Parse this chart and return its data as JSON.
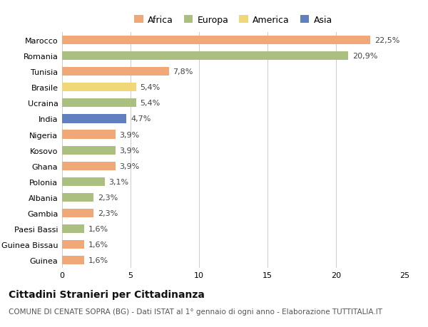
{
  "categories": [
    "Marocco",
    "Romania",
    "Tunisia",
    "Brasile",
    "Ucraina",
    "India",
    "Nigeria",
    "Kosovo",
    "Ghana",
    "Polonia",
    "Albania",
    "Gambia",
    "Paesi Bassi",
    "Guinea Bissau",
    "Guinea"
  ],
  "values": [
    22.5,
    20.9,
    7.8,
    5.4,
    5.4,
    4.7,
    3.9,
    3.9,
    3.9,
    3.1,
    2.3,
    2.3,
    1.6,
    1.6,
    1.6
  ],
  "labels": [
    "22,5%",
    "20,9%",
    "7,8%",
    "5,4%",
    "5,4%",
    "4,7%",
    "3,9%",
    "3,9%",
    "3,9%",
    "3,1%",
    "2,3%",
    "2,3%",
    "1,6%",
    "1,6%",
    "1,6%"
  ],
  "continents": [
    "Africa",
    "Europa",
    "Africa",
    "America",
    "Europa",
    "Asia",
    "Africa",
    "Europa",
    "Africa",
    "Europa",
    "Europa",
    "Africa",
    "Europa",
    "Africa",
    "Africa"
  ],
  "continent_colors": {
    "Africa": "#F0A878",
    "Europa": "#AABF80",
    "America": "#F0D878",
    "Asia": "#6080C0"
  },
  "legend_order": [
    "Africa",
    "Europa",
    "America",
    "Asia"
  ],
  "title": "Cittadini Stranieri per Cittadinanza",
  "subtitle": "COMUNE DI CENATE SOPRA (BG) - Dati ISTAT al 1° gennaio di ogni anno - Elaborazione TUTTITALIA.IT",
  "xlim": [
    0,
    25
  ],
  "xticks": [
    0,
    5,
    10,
    15,
    20,
    25
  ],
  "background_color": "#ffffff",
  "bar_height": 0.55,
  "label_fontsize": 8,
  "tick_fontsize": 8,
  "title_fontsize": 10,
  "subtitle_fontsize": 7.5
}
